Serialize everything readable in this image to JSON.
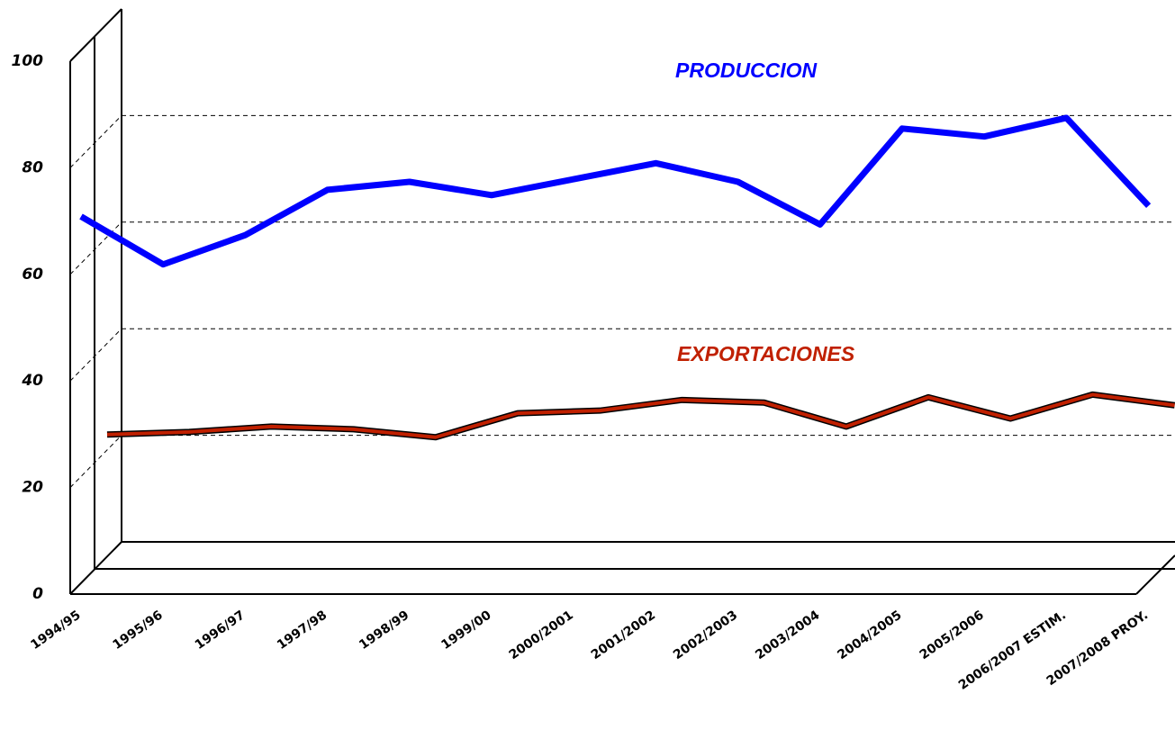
{
  "chart_data": {
    "type": "line",
    "categories": [
      "1994/95",
      "1995/96",
      "1996/97",
      "1997/98",
      "1998/99",
      "1999/00",
      "2000/2001",
      "2001/2002",
      "2002/2003",
      "2003/2004",
      "2004/2005",
      "2005/2006",
      "2006/2007 ESTIM.",
      "2007/2008 PROY."
    ],
    "series": [
      {
        "name": "PRODUCCION",
        "color": "#0000ff",
        "values": [
          68.5,
          59.5,
          65,
          73.5,
          75,
          72.5,
          75.5,
          78.5,
          75,
          67,
          85,
          83.5,
          87,
          70.5
        ]
      },
      {
        "name": "EXPORTACIONES",
        "color": "#c02000",
        "values": [
          22.5,
          23,
          24,
          23.5,
          22,
          26.5,
          27,
          29,
          28.5,
          24,
          29.5,
          25.5,
          30,
          28
        ]
      }
    ],
    "ylim": [
      0,
      100
    ],
    "yticks": [
      0,
      20,
      40,
      60,
      80,
      100
    ],
    "grid": true
  }
}
